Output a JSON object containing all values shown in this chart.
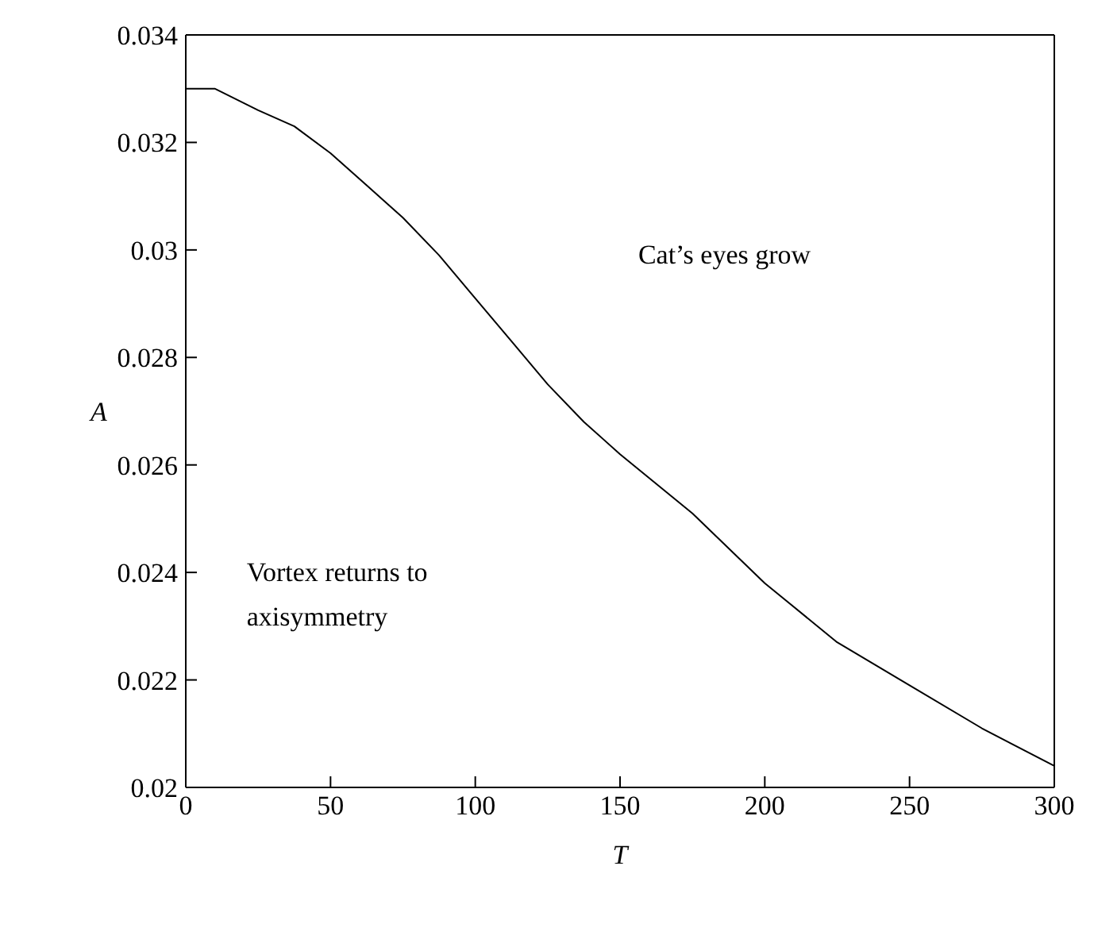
{
  "chart_data": {
    "type": "line",
    "xlabel": "T",
    "ylabel": "A",
    "x": [
      0,
      10,
      25,
      37.5,
      50,
      62.5,
      75,
      87.5,
      100,
      112.5,
      125,
      137.5,
      150,
      175,
      200,
      225,
      250,
      275,
      300
    ],
    "series": [
      {
        "color": "#000000",
        "values": [
          0.033,
          0.033,
          0.0326,
          0.0323,
          0.0318,
          0.0312,
          0.0306,
          0.0299,
          0.0291,
          0.0283,
          0.0275,
          0.0268,
          0.0262,
          0.0251,
          0.0238,
          0.0227,
          0.0219,
          0.0211,
          0.0204
        ]
      }
    ],
    "xlim": [
      0,
      300
    ],
    "xticks": [
      0,
      50,
      100,
      150,
      200,
      250,
      300
    ],
    "ylim": [
      0.02,
      0.034
    ],
    "yticks": [
      0.02,
      0.022,
      0.024,
      0.026,
      0.028,
      0.03,
      0.032,
      0.034
    ],
    "grid": false,
    "legend": false,
    "marker": "none",
    "line_style": "solid",
    "annotations": [
      "Cat’s eyes grow",
      "Vortex returns to axisymmetry"
    ]
  }
}
